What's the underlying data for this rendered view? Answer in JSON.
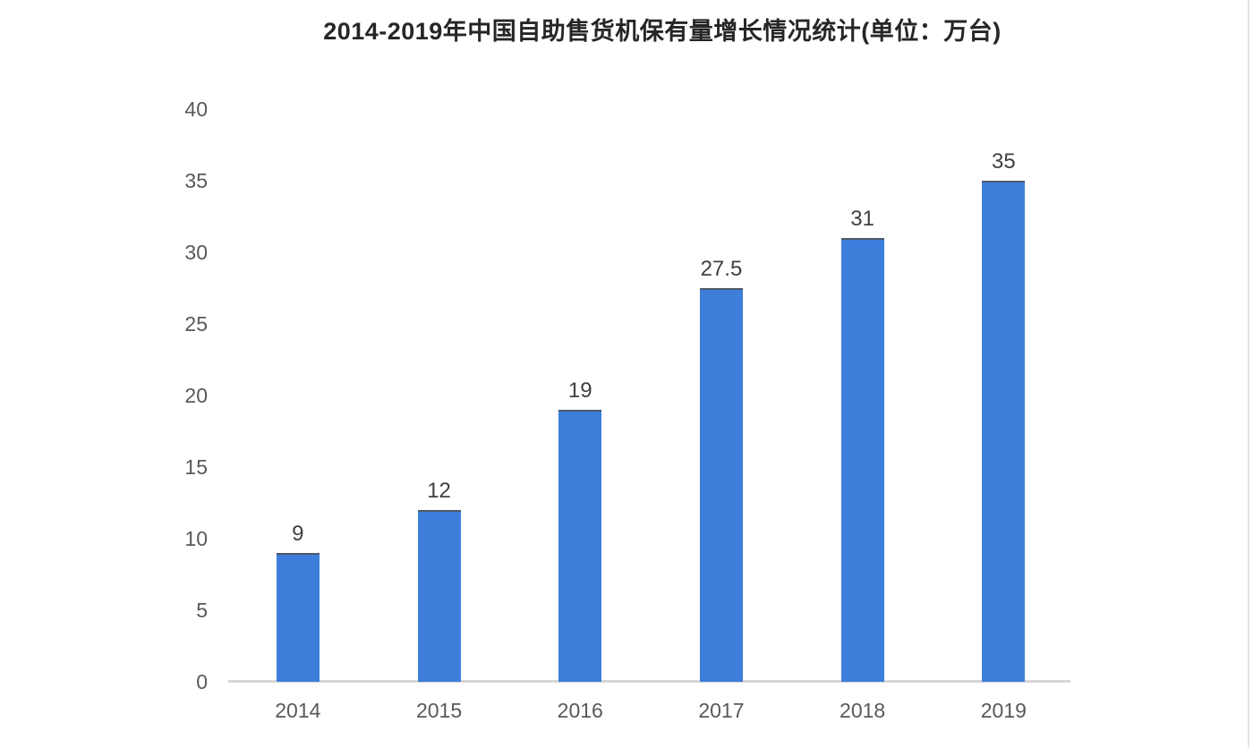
{
  "page": {
    "background": "#ffffff",
    "right_edge_line_color": "#e4e4e4"
  },
  "chart_data": {
    "type": "bar",
    "title": "2014-2019年中国自助售货机保有量增长情况统计(单位：万台)",
    "unit": "万台",
    "categories": [
      "2014",
      "2015",
      "2016",
      "2017",
      "2018",
      "2019"
    ],
    "values": [
      9,
      12,
      19,
      27.5,
      31,
      35
    ],
    "value_labels": [
      "9",
      "12",
      "19",
      "27.5",
      "31",
      "35"
    ],
    "ylim": [
      0,
      40
    ],
    "yticks": [
      0,
      5,
      10,
      15,
      20,
      25,
      30,
      35,
      40
    ],
    "xlabel": "",
    "ylabel": "",
    "grid": false,
    "legend": "none",
    "colors": {
      "bar": "#3d7edb",
      "bar_top_edge": "#4d5a66",
      "value_label": "#404040",
      "tick_label": "#595959",
      "axis_line": "#d7d7d7",
      "title": "#262626"
    }
  }
}
